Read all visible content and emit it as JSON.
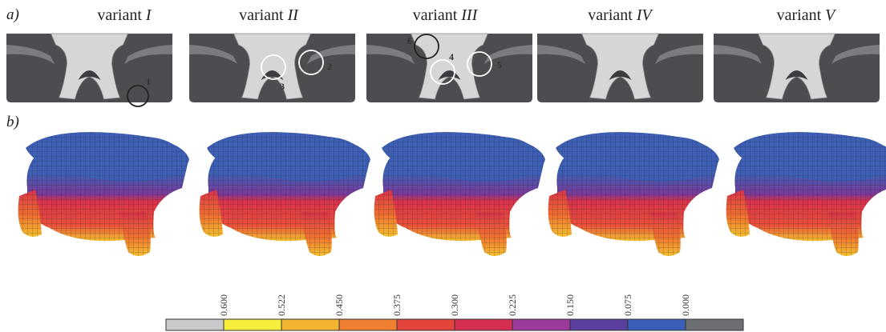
{
  "panel_labels": {
    "a": "a)",
    "b": "b)"
  },
  "variants": [
    {
      "prefix": "variant ",
      "numeral": "I"
    },
    {
      "prefix": "variant ",
      "numeral": "II"
    },
    {
      "prefix": "variant ",
      "numeral": "III"
    },
    {
      "prefix": "variant ",
      "numeral": "IV"
    },
    {
      "prefix": "variant ",
      "numeral": "V"
    }
  ],
  "callouts": [
    "1",
    "2",
    "3",
    "4",
    "5",
    "6"
  ],
  "legend": {
    "values": [
      "0.600",
      "0.522",
      "0.450",
      "0.375",
      "0.300",
      "0.225",
      "0.150",
      "0.075",
      "0.000"
    ],
    "colors": [
      "#c9c9cc",
      "#f6ee3a",
      "#f3b531",
      "#ee8030",
      "#e5443a",
      "#d42e50",
      "#9a3a9a",
      "#5a3f9e",
      "#3a5fb8",
      "#6d6f73"
    ]
  },
  "colors": {
    "casing": "#4b4d50",
    "casing_band": "#7a7c80",
    "blade": "#d6d6d6",
    "mesh_top": "#3d5fb4",
    "mesh_mid": "#d8324a",
    "mesh_hot": "#f4c030"
  }
}
